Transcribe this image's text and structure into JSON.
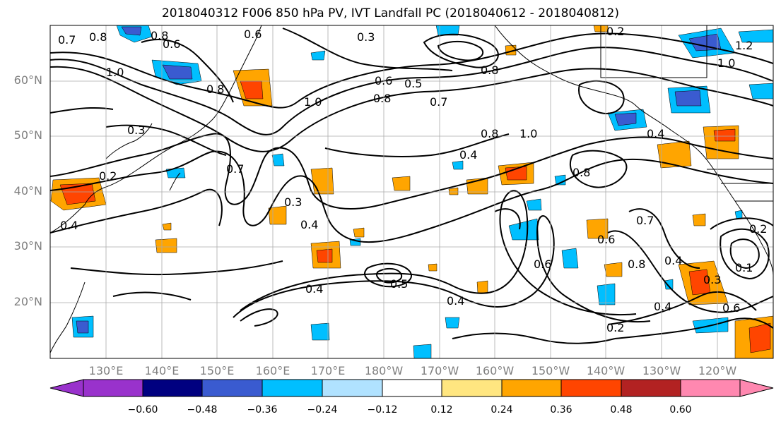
{
  "title": "2018040312 F006 850 hPa PV, IVT Landfall PC (2018040612 - 2018040812)",
  "lat_labels": [
    "60°N",
    "50°N",
    "40°N",
    "30°N",
    "20°N"
  ],
  "lon_labels": [
    "130°E",
    "140°E",
    "150°E",
    "160°E",
    "170°E",
    "180°W",
    "170°W",
    "160°W",
    "150°W",
    "140°W",
    "130°W",
    "120°W"
  ],
  "colorbar": {
    "ticks": [
      "−0.60",
      "−0.48",
      "−0.36",
      "−0.24",
      "−0.12",
      "0.12",
      "0.24",
      "0.36",
      "0.48",
      "0.60"
    ],
    "colors": [
      "#9932cc",
      "#000080",
      "#3a5bd0",
      "#00bfff",
      "#b0e2ff",
      "#ffffff",
      "#ffe680",
      "#ffa500",
      "#ff4500",
      "#b22222",
      "#ff88b0"
    ]
  },
  "contour_labels": [
    "0.7",
    "0.8",
    "0.8",
    "0.6",
    "0.6",
    "0.3",
    "0.2",
    "1.2",
    "1.0",
    "1.0",
    "0.8",
    "0.6",
    "0.5",
    "0.8",
    "0.7",
    "1.0",
    "0.3",
    "0.2",
    "0.7",
    "0.3",
    "0.4",
    "0.4",
    "0.8",
    "1.0",
    "0.4",
    "0.8",
    "0.4",
    "0.7",
    "0.6",
    "0.8",
    "0.4",
    "0.3",
    "0.6",
    "0.4",
    "0.5",
    "0.4",
    "0.2",
    "0.4",
    "0.6",
    "0.2",
    "0.1",
    "0.8"
  ]
}
